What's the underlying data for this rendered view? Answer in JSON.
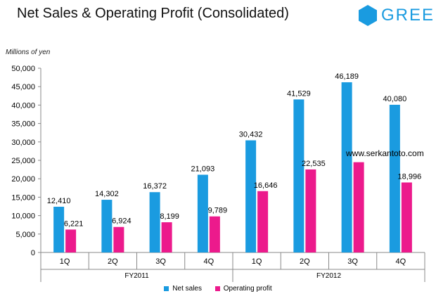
{
  "page": {
    "title": "Net Sales & Operating Profit (Consolidated)",
    "logo_text": "GREE",
    "unit_label": "Millions of yen",
    "watermark": "www.serkantoto.com"
  },
  "colors": {
    "net_sales": "#1a9be0",
    "operating_profit": "#ec1a8c",
    "logo": "#1a9be0"
  },
  "chart_data": {
    "type": "bar",
    "title": "Net Sales & Operating Profit (Consolidated)",
    "ylabel": "Millions of yen",
    "ylim": [
      0,
      50000
    ],
    "yticks": [
      0,
      5000,
      10000,
      15000,
      20000,
      25000,
      30000,
      35000,
      40000,
      45000,
      50000
    ],
    "ytick_labels": [
      "0",
      "5,000",
      "10,000",
      "15,000",
      "20,000",
      "25,000",
      "30,000",
      "35,000",
      "40,000",
      "45,000",
      "50,000"
    ],
    "categories": [
      "1Q",
      "2Q",
      "3Q",
      "4Q",
      "1Q",
      "2Q",
      "3Q",
      "4Q"
    ],
    "groups": [
      {
        "label": "FY2011",
        "categories": [
          "1Q",
          "2Q",
          "3Q",
          "4Q"
        ]
      },
      {
        "label": "FY2012",
        "categories": [
          "1Q",
          "2Q",
          "3Q",
          "4Q"
        ]
      }
    ],
    "series": [
      {
        "name": "Net sales",
        "color": "#1a9be0",
        "values": [
          12410,
          14302,
          16372,
          21093,
          30432,
          41529,
          46189,
          40080
        ],
        "labels": [
          "12,410",
          "14,302",
          "16,372",
          "21,093",
          "30,432",
          "41,529",
          "46,189",
          "40,080"
        ]
      },
      {
        "name": "Operating profit",
        "color": "#ec1a8c",
        "values": [
          6221,
          6924,
          8199,
          9789,
          16646,
          22535,
          24500,
          18996
        ],
        "labels": [
          "6,221",
          "6,924",
          "8,199",
          "9,789",
          "16,646",
          "22,535",
          "",
          "18,996"
        ]
      }
    ],
    "grid": false,
    "legend_position": "bottom"
  }
}
